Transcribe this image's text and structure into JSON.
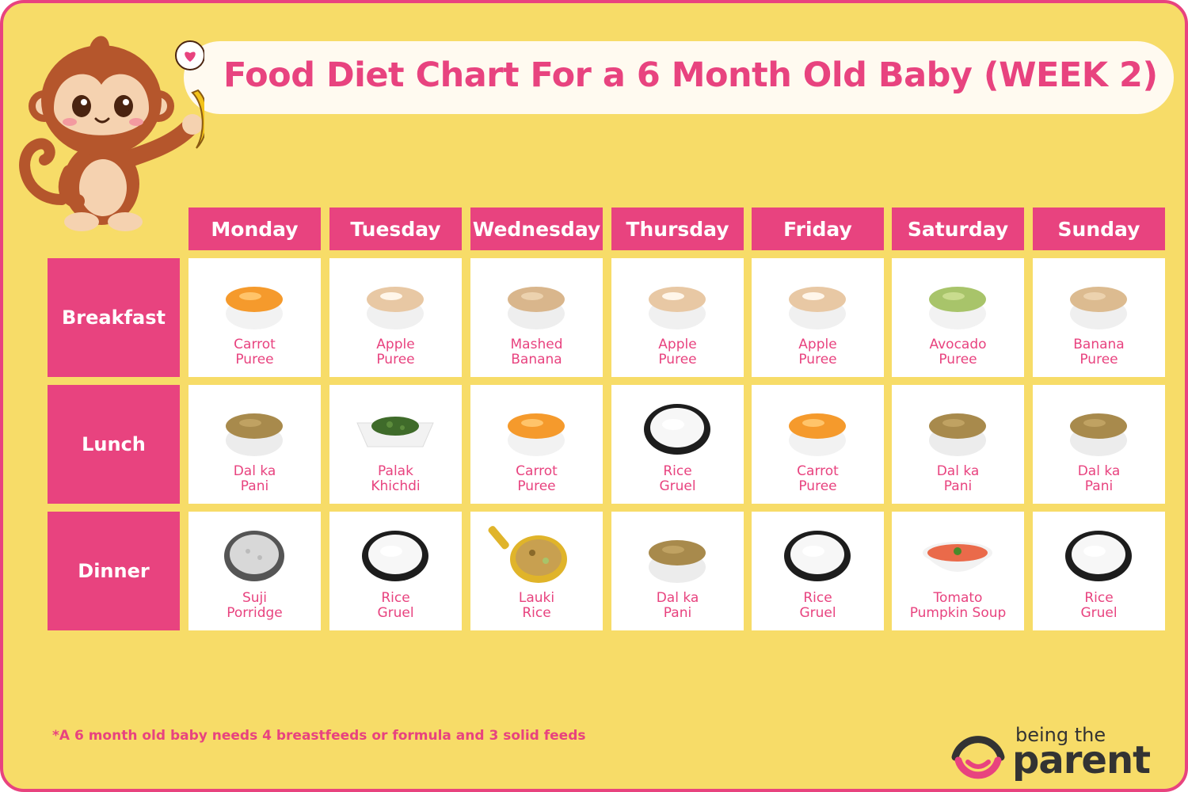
{
  "title": "Food Diet Chart For a 6 Month Old Baby (WEEK 2)",
  "days": [
    "Monday",
    "Tuesday",
    "Wednesday",
    "Thursday",
    "Friday",
    "Saturday",
    "Sunday"
  ],
  "meals": [
    "Breakfast",
    "Lunch",
    "Dinner"
  ],
  "foods": [
    [
      {
        "name": "Carrot\nPuree",
        "icon": "orange-puree-bowl-icon"
      },
      {
        "name": "Apple\nPuree",
        "icon": "apple-puree-bowl-icon"
      },
      {
        "name": "Mashed\nBanana",
        "icon": "banana-mash-bowl-icon"
      },
      {
        "name": "Apple\nPuree",
        "icon": "apple-puree-bowl-icon"
      },
      {
        "name": "Apple\nPuree",
        "icon": "apple-puree-bowl-icon"
      },
      {
        "name": "Avocado\nPuree",
        "icon": "avocado-puree-bowl-icon"
      },
      {
        "name": "Banana\nPuree",
        "icon": "banana-puree-bowl-icon"
      }
    ],
    [
      {
        "name": "Dal ka\nPani",
        "icon": "dal-bowl-icon"
      },
      {
        "name": "Palak\nKhichdi",
        "icon": "palak-khichdi-bowl-icon"
      },
      {
        "name": "Carrot\nPuree",
        "icon": "orange-puree-bowl-icon"
      },
      {
        "name": "Rice\nGruel",
        "icon": "rice-gruel-bowl-icon"
      },
      {
        "name": "Carrot\nPuree",
        "icon": "orange-puree-bowl-icon"
      },
      {
        "name": "Dal ka\nPani",
        "icon": "dal-bowl-icon"
      },
      {
        "name": "Dal ka\nPani",
        "icon": "dal-bowl-icon"
      }
    ],
    [
      {
        "name": "Suji\nPorridge",
        "icon": "suji-porridge-bowl-icon"
      },
      {
        "name": "Rice\nGruel",
        "icon": "rice-gruel-bowl-icon"
      },
      {
        "name": "Lauki\nRice",
        "icon": "lauki-rice-pan-icon"
      },
      {
        "name": "Dal ka\nPani",
        "icon": "dal-bowl-icon"
      },
      {
        "name": "Rice\nGruel",
        "icon": "rice-gruel-bowl-icon"
      },
      {
        "name": "Tomato\nPumpkin Soup",
        "icon": "tomato-soup-bowl-icon"
      },
      {
        "name": "Rice\nGruel",
        "icon": "rice-gruel-bowl-icon"
      }
    ]
  ],
  "footnote": "*A 6 month old baby needs 4 breastfeeds or formula and 3 solid feeds",
  "brand": {
    "line1": "being the",
    "line2": "parent"
  },
  "colors": {
    "accent": "#e8437f",
    "background": "#f7dc68",
    "cell": "#ffffff"
  }
}
